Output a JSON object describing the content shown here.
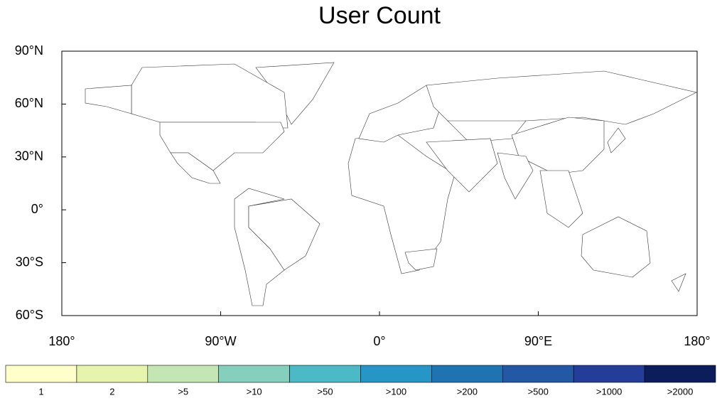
{
  "chart_data": {
    "type": "choropleth",
    "title": "User Count",
    "xlim": [
      -180,
      180
    ],
    "ylim": [
      -60,
      90
    ],
    "xticks": [
      {
        "value": -180,
        "label": "180°"
      },
      {
        "value": -90,
        "label": "90°W"
      },
      {
        "value": 0,
        "label": "0°"
      },
      {
        "value": 90,
        "label": "90°E"
      },
      {
        "value": 180,
        "label": "180°"
      }
    ],
    "yticks": [
      {
        "value": 90,
        "label": "90°N"
      },
      {
        "value": 60,
        "label": "60°N"
      },
      {
        "value": 30,
        "label": "30°N"
      },
      {
        "value": 0,
        "label": "0°"
      },
      {
        "value": -30,
        "label": "30°S"
      },
      {
        "value": -60,
        "label": "60°S"
      }
    ],
    "legend": [
      {
        "label": "1",
        "color": "#ffffcc"
      },
      {
        "label": "2",
        "color": "#e6f4ae"
      },
      {
        "label": ">5",
        "color": "#c4e6b4"
      },
      {
        "label": ">10",
        "color": "#86cfbd"
      },
      {
        "label": ">50",
        "color": "#4bb9c6"
      },
      {
        "label": ">100",
        "color": "#2696c6"
      },
      {
        "label": ">200",
        "color": "#2073b1"
      },
      {
        "label": ">500",
        "color": "#2358a5"
      },
      {
        "label": ">1000",
        "color": "#243d98"
      },
      {
        "label": ">2000",
        "color": "#0b1d5a"
      }
    ]
  }
}
